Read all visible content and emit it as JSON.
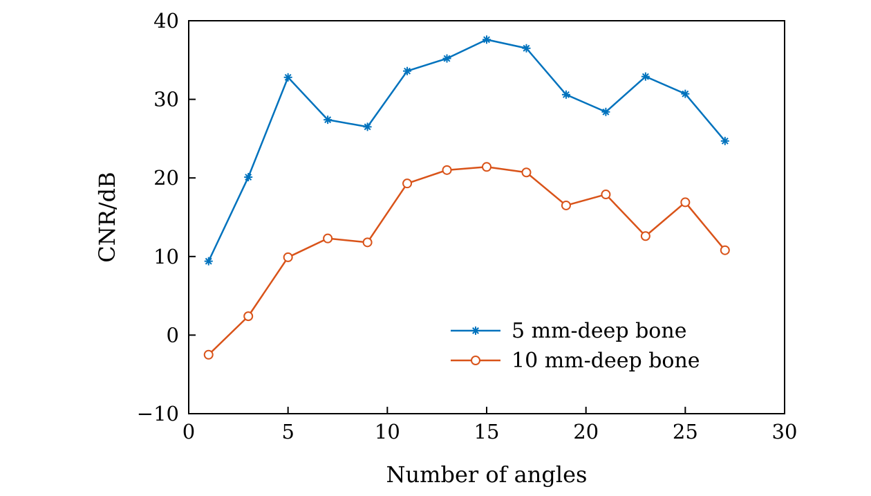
{
  "chart_data": {
    "type": "line",
    "title": "",
    "xlabel": "Number of angles",
    "ylabel": "CNR/dB",
    "xlim": [
      0,
      30
    ],
    "ylim": [
      -10,
      40
    ],
    "xticks": [
      0,
      5,
      10,
      15,
      20,
      25,
      30
    ],
    "yticks": [
      -10,
      0,
      10,
      20,
      30,
      40
    ],
    "grid": false,
    "legend_position": "lower-right-inside",
    "x": [
      1,
      3,
      5,
      7,
      9,
      11,
      13,
      15,
      17,
      19,
      21,
      23,
      25,
      27
    ],
    "series": [
      {
        "name": "5 mm-deep bone",
        "color": "#0072BD",
        "marker": "asterisk",
        "values": [
          9.4,
          20.1,
          32.8,
          27.4,
          26.5,
          33.6,
          35.2,
          37.6,
          36.5,
          30.6,
          28.4,
          32.9,
          30.7,
          24.7
        ]
      },
      {
        "name": "10 mm-deep bone",
        "color": "#D95319",
        "marker": "circle",
        "values": [
          -2.5,
          2.4,
          9.9,
          12.3,
          11.8,
          19.3,
          21.0,
          21.4,
          20.7,
          16.5,
          17.9,
          12.6,
          16.9,
          10.8
        ]
      }
    ]
  }
}
